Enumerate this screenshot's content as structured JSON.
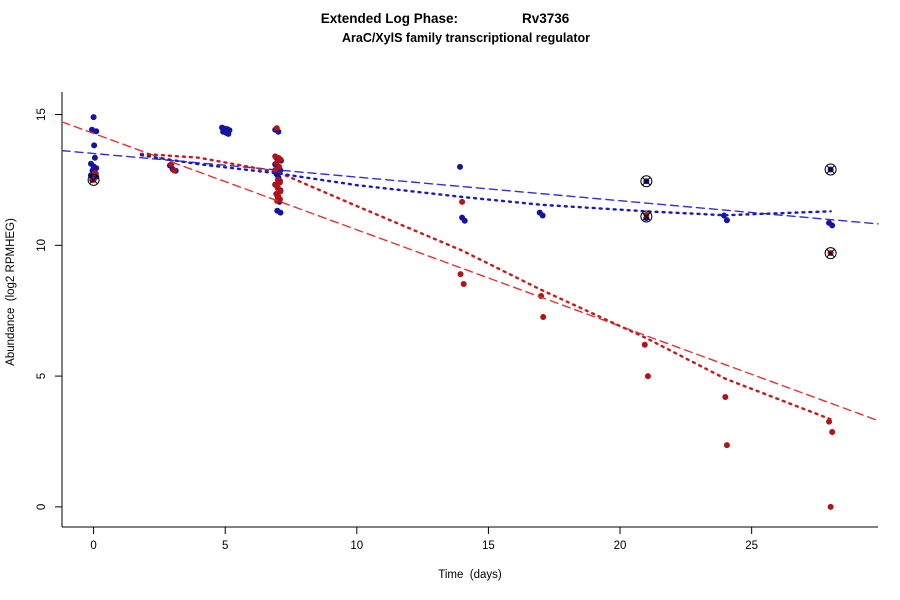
{
  "chart_data": {
    "type": "scatter",
    "title_left": "Extended Log Phase:",
    "title_right": "Rv3736",
    "subtitle": "AraC/XylS family transcriptional regulator",
    "xlabel": "Time  (days)",
    "ylabel": "Abundance  (log2 RPMHEG)",
    "xlim": [
      -1.2,
      29.8
    ],
    "ylim": [
      -0.77,
      17.2
    ],
    "xticks": [
      0,
      5,
      10,
      15,
      20,
      25
    ],
    "yticks": [
      0,
      5,
      10,
      15
    ],
    "grid": false,
    "legend": "none",
    "series": [
      {
        "name": "blue-condition",
        "color": "#1414a0",
        "points": [
          [
            0.0,
            14.9
          ],
          [
            -0.06,
            14.42
          ],
          [
            0.1,
            14.36
          ],
          [
            0.02,
            13.82
          ],
          [
            0.05,
            13.35
          ],
          [
            -0.1,
            13.12
          ],
          [
            0.0,
            13.02
          ],
          [
            0.1,
            12.95
          ],
          [
            -0.04,
            12.86
          ],
          [
            0.02,
            12.8
          ],
          [
            0.08,
            12.74
          ],
          [
            -0.1,
            12.68
          ],
          [
            0.1,
            12.62
          ],
          [
            0.0,
            12.57
          ],
          [
            -0.05,
            12.5
          ],
          [
            2.9,
            13.05
          ],
          [
            3.0,
            12.92
          ],
          [
            3.12,
            12.85
          ],
          [
            4.88,
            14.5
          ],
          [
            4.97,
            14.46
          ],
          [
            5.08,
            14.44
          ],
          [
            5.16,
            14.4
          ],
          [
            4.92,
            14.34
          ],
          [
            5.04,
            14.3
          ],
          [
            5.12,
            14.26
          ],
          [
            6.9,
            14.42
          ],
          [
            7.02,
            14.34
          ],
          [
            6.93,
            13.36
          ],
          [
            7.04,
            13.3
          ],
          [
            7.12,
            13.24
          ],
          [
            6.9,
            13.1
          ],
          [
            7.0,
            12.96
          ],
          [
            7.1,
            12.86
          ],
          [
            6.95,
            12.72
          ],
          [
            7.02,
            12.6
          ],
          [
            7.08,
            12.46
          ],
          [
            6.9,
            12.32
          ],
          [
            7.0,
            12.2
          ],
          [
            7.1,
            12.1
          ],
          [
            6.94,
            11.96
          ],
          [
            7.0,
            11.8
          ],
          [
            7.06,
            11.66
          ],
          [
            6.98,
            11.32
          ],
          [
            7.1,
            11.25
          ],
          [
            13.92,
            13.0
          ],
          [
            14.0,
            11.06
          ],
          [
            14.1,
            10.94
          ],
          [
            16.95,
            11.25
          ],
          [
            17.06,
            11.14
          ],
          [
            21.0,
            12.45
          ],
          [
            21.0,
            11.04
          ],
          [
            23.95,
            11.14
          ],
          [
            24.06,
            10.96
          ],
          [
            28.0,
            12.9
          ],
          [
            27.94,
            10.86
          ],
          [
            28.06,
            10.76
          ]
        ]
      },
      {
        "name": "red-condition",
        "color": "#b01414",
        "points": [
          [
            0.05,
            12.76
          ],
          [
            0.0,
            12.5
          ],
          [
            2.95,
            13.1
          ],
          [
            3.06,
            12.86
          ],
          [
            6.96,
            14.48
          ],
          [
            6.9,
            13.4
          ],
          [
            7.03,
            13.34
          ],
          [
            7.1,
            13.28
          ],
          [
            6.95,
            13.15
          ],
          [
            7.05,
            13.0
          ],
          [
            6.9,
            12.88
          ],
          [
            7.0,
            12.5
          ],
          [
            7.08,
            12.4
          ],
          [
            6.92,
            12.3
          ],
          [
            7.0,
            12.18
          ],
          [
            7.1,
            12.06
          ],
          [
            6.95,
            11.95
          ],
          [
            7.02,
            11.86
          ],
          [
            7.08,
            11.76
          ],
          [
            6.97,
            11.7
          ],
          [
            14.0,
            11.66
          ],
          [
            13.94,
            8.9
          ],
          [
            14.06,
            8.52
          ],
          [
            17.0,
            8.06
          ],
          [
            17.08,
            7.26
          ],
          [
            21.0,
            11.16
          ],
          [
            20.94,
            6.2
          ],
          [
            21.06,
            5.0
          ],
          [
            24.0,
            4.2
          ],
          [
            24.06,
            2.36
          ],
          [
            28.0,
            9.7
          ],
          [
            27.94,
            3.26
          ],
          [
            28.06,
            2.86
          ],
          [
            28.0,
            0.0
          ]
        ]
      }
    ],
    "trend_lines": [
      {
        "name": "red-linear-fit",
        "color": "#e03434",
        "style": "dashed",
        "dash": "8,5",
        "width": 1.4,
        "points": [
          [
            -1.2,
            14.72
          ],
          [
            29.8,
            3.3
          ]
        ]
      },
      {
        "name": "blue-linear-fit",
        "color": "#3232d2",
        "style": "dashed",
        "dash": "8,5",
        "width": 1.4,
        "points": [
          [
            -1.2,
            13.62
          ],
          [
            29.8,
            10.82
          ]
        ]
      },
      {
        "name": "red-smooth-fit",
        "color": "#cc1818",
        "style": "dotted",
        "dash": "2,5",
        "width": 2.4,
        "points": [
          [
            1.8,
            13.5
          ],
          [
            4.0,
            13.35
          ],
          [
            7.0,
            12.8
          ],
          [
            10.0,
            11.5
          ],
          [
            14.0,
            9.8
          ],
          [
            17.0,
            8.3
          ],
          [
            21.0,
            6.45
          ],
          [
            24.0,
            4.9
          ],
          [
            28.0,
            3.35
          ]
        ]
      },
      {
        "name": "blue-smooth-fit",
        "color": "#1a1ac0",
        "style": "dotted",
        "dash": "2,5",
        "width": 2.4,
        "points": [
          [
            1.8,
            13.45
          ],
          [
            4.0,
            13.1
          ],
          [
            7.0,
            12.75
          ],
          [
            10.0,
            12.3
          ],
          [
            14.0,
            11.85
          ],
          [
            17.0,
            11.55
          ],
          [
            21.0,
            11.3
          ],
          [
            24.0,
            11.15
          ],
          [
            28.0,
            11.3
          ]
        ]
      }
    ],
    "circled_points": {
      "marker": "circle-x",
      "color": "#000000",
      "points": [
        [
          0.0,
          12.5
        ],
        [
          21.0,
          12.45
        ],
        [
          21.0,
          11.1
        ],
        [
          28.0,
          12.9
        ],
        [
          28.0,
          9.7
        ]
      ]
    }
  }
}
